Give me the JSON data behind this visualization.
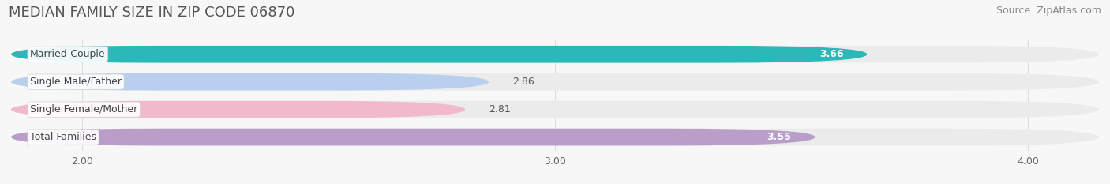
{
  "title": "MEDIAN FAMILY SIZE IN ZIP CODE 06870",
  "source": "Source: ZipAtlas.com",
  "categories": [
    "Married-Couple",
    "Single Male/Father",
    "Single Female/Mother",
    "Total Families"
  ],
  "values": [
    3.66,
    2.86,
    2.81,
    3.55
  ],
  "bar_colors": [
    "#2ab8b8",
    "#b8cfed",
    "#f2b8cc",
    "#b89ec8"
  ],
  "track_color": "#ebebeb",
  "xlim_left": 1.85,
  "xlim_right": 4.15,
  "xticks": [
    2.0,
    3.0,
    4.0
  ],
  "xtick_labels": [
    "2.00",
    "3.00",
    "4.00"
  ],
  "bar_height": 0.62,
  "background_color": "#f7f7f7",
  "title_fontsize": 13,
  "label_fontsize": 9,
  "value_fontsize": 9,
  "source_fontsize": 9,
  "title_color": "#555555",
  "source_color": "#888888",
  "value_color_inside": "#ffffff",
  "value_color_outside": "#555555",
  "label_text_color": "#444444",
  "grid_color": "#dddddd"
}
